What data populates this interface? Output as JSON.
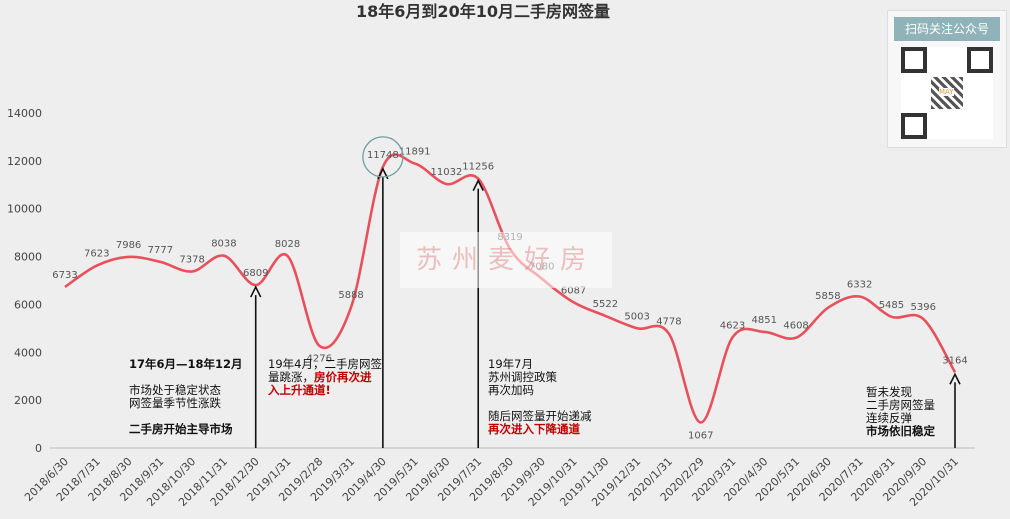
{
  "chart_data": {
    "type": "line",
    "title": "18年6月到20年10月二手房网签量",
    "categories": [
      "2018/6/30",
      "2018/7/31",
      "2018/8/30",
      "2018/9/31",
      "2018/10/30",
      "2018/11/31",
      "2018/12/30",
      "2019/1/31",
      "2019/2/28",
      "2019/3/31",
      "2019/4/30",
      "2019/5/31",
      "2019/6/30",
      "2019/7/31",
      "2019/8/30",
      "2019/9/30",
      "2019/10/31",
      "2019/11/30",
      "2019/12/31",
      "2020/1/31",
      "2020/2/29",
      "2020/3/31",
      "2020/4/30",
      "2020/5/31",
      "2020/6/30",
      "2020/7/31",
      "2020/8/31",
      "2020/9/30",
      "2020/10/31"
    ],
    "values": [
      6733,
      7623,
      7986,
      7777,
      7378,
      8038,
      6809,
      8028,
      4276,
      5888,
      11748,
      11891,
      11032,
      11256,
      8319,
      7080,
      6087,
      5522,
      5003,
      4778,
      1067,
      4623,
      4851,
      4608,
      5858,
      6332,
      5485,
      5396,
      3164
    ],
    "ylim": [
      0,
      14000
    ],
    "yticks": [
      0,
      2000,
      4000,
      6000,
      8000,
      10000,
      12000,
      14000
    ],
    "line_color": "#e8505b",
    "grid": false,
    "highlighted_point": "2019/4/30"
  },
  "annotations": {
    "a1": {
      "line1": "17年6月—18年12月",
      "line2": "市场处于稳定状态",
      "line3": "网签量季节性涨跌",
      "line4": "二手房开始主导市场"
    },
    "a2": {
      "line1": "19年4月，二手房网签",
      "line2a": "量跳涨，",
      "line2b": "房价再次进",
      "line3": "入上升通道!"
    },
    "a3": {
      "line1": "19年7月",
      "line2": "苏州调控政策",
      "line3": "再次加码",
      "line4": "随后网签量开始递减",
      "line5": "再次进入下降通道"
    },
    "a4": {
      "line1": "暂未发现",
      "line2": "二手房网签量",
      "line3": "连续反弹",
      "line4": "市场依旧稳定"
    }
  },
  "qr": {
    "title": "扫码关注公众号",
    "center_text": "MAY"
  },
  "watermark": "苏州麦好房"
}
